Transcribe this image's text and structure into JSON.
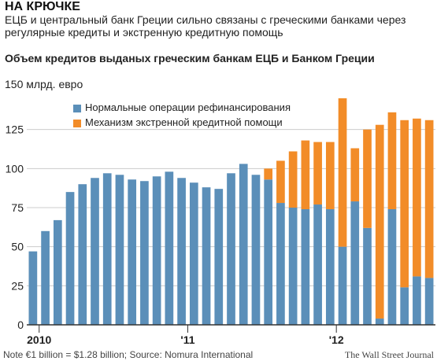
{
  "headline": "НА КРЮЧКЕ",
  "subhead": "ЕЦБ и центральный банк Греции сильно связаны с греческими банками через регулярные кредиты и экстренную кредитную помощь",
  "footer": {
    "note": "Note €1 billion = $1.28 billion; Source: Nomura International",
    "source": "The Wall Street Journal"
  },
  "colors": {
    "normal": "#5b8fb9",
    "emergency": "#f28c28",
    "grid": "#cccccc",
    "background": "#ffffff"
  },
  "chart_data": {
    "type": "bar",
    "stacked": true,
    "title": "Объем кредитов выданых греческим банкам ЕЦБ и Банком Греции",
    "unit_label": "150 млрд. евро",
    "ylim": [
      0,
      150
    ],
    "yticks": [
      0,
      25,
      50,
      75,
      100,
      125
    ],
    "grid": true,
    "legend_position": "top-left",
    "x_tick_labels": [
      {
        "label": "2010",
        "index": 1
      },
      {
        "label": "'11",
        "index": 13
      },
      {
        "label": "'12",
        "index": 25
      }
    ],
    "series": [
      {
        "name": "Нормальные операции рефинансирования",
        "color": "#5b8fb9",
        "values": [
          47,
          60,
          67,
          85,
          90,
          94,
          97,
          96,
          93,
          92,
          95,
          98,
          94,
          91,
          88,
          87,
          97,
          103,
          96,
          93,
          78,
          75,
          74,
          77,
          74,
          50,
          79,
          62,
          4,
          74,
          24,
          31,
          30
        ]
      },
      {
        "name": "Механизм экстренной кредитной помощи",
        "color": "#f28c28",
        "values": [
          0,
          0,
          0,
          0,
          0,
          0,
          0,
          0,
          0,
          0,
          0,
          0,
          0,
          0,
          0,
          0,
          0,
          0,
          0,
          7,
          27,
          36,
          44,
          40,
          43,
          95,
          34,
          63,
          124,
          62,
          107,
          101,
          101
        ]
      }
    ]
  }
}
